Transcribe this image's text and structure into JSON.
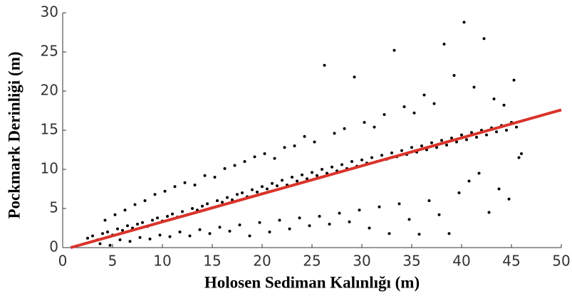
{
  "chart_data": {
    "type": "scatter",
    "xlabel": "Holosen Sediman Kalınlığı (m)",
    "ylabel": "Pockmark Derinliği (m)",
    "xlim": [
      0,
      50
    ],
    "ylim": [
      0,
      30
    ],
    "xticks": [
      0,
      5,
      10,
      15,
      20,
      25,
      30,
      35,
      40,
      45,
      50
    ],
    "yticks": [
      0,
      5,
      10,
      15,
      20,
      25,
      30
    ],
    "color": "#000000",
    "x": [
      2.5,
      3,
      3.5,
      4,
      4.5,
      5,
      5.5,
      6,
      6.5,
      7,
      7.5,
      8,
      8.5,
      9,
      9.5,
      10,
      10.5,
      11,
      11.5,
      12,
      12.5,
      13,
      13.5,
      14,
      14.5,
      15,
      15.5,
      16,
      16.5,
      17,
      17.5,
      18,
      18.5,
      19,
      19.5,
      20,
      20.5,
      21,
      21.5,
      22,
      22.5,
      23,
      23.5,
      24,
      24.5,
      25,
      25.5,
      26,
      26.5,
      27,
      27.5,
      28,
      28.5,
      29,
      29.5,
      30,
      30.5,
      31,
      31.5,
      32,
      32.5,
      33,
      33.5,
      34,
      34.5,
      35,
      35.5,
      36,
      36.5,
      37,
      37.5,
      38,
      38.5,
      39,
      39.5,
      40,
      40.5,
      41,
      41.5,
      42,
      42.5,
      43,
      43.5,
      44,
      44.5,
      45,
      45.5,
      46,
      4.25,
      5.25,
      6.25,
      7.25,
      8.25,
      9.25,
      10.25,
      11.25,
      12.25,
      13.25,
      14.25,
      15.25,
      16.25,
      17.25,
      18.25,
      19.25,
      20.25,
      21.25,
      22.25,
      23.25,
      24.25,
      25.25,
      26.25,
      27.25,
      28.25,
      29.25,
      30.25,
      31.25,
      32.25,
      33.25,
      34.25,
      35.25,
      36.25,
      37.25,
      38.25,
      39.25,
      40.25,
      41.25,
      42.25,
      43.25,
      44.25,
      45.25,
      3.75,
      4.75,
      5.75,
      6.75,
      7.75,
      8.75,
      9.75,
      10.75,
      11.75,
      12.75,
      13.75,
      14.75,
      15.75,
      16.75,
      17.75,
      18.75,
      19.75,
      20.75,
      21.75,
      22.75,
      23.75,
      24.75,
      25.75,
      26.75,
      27.75,
      28.75,
      29.75,
      30.75,
      31.75,
      32.75,
      33.75,
      34.75,
      35.75,
      36.75,
      37.75,
      38.75,
      39.75,
      40.75,
      41.75,
      42.75,
      43.75,
      44.75,
      45.75
    ],
    "values": [
      1.2,
      1.5,
      1.0,
      1.8,
      2.0,
      1.6,
      2.4,
      2.2,
      2.8,
      2.5,
      3.0,
      3.2,
      2.7,
      3.5,
      3.8,
      3.4,
      4.0,
      4.3,
      3.9,
      4.6,
      4.2,
      5.0,
      4.8,
      5.3,
      5.6,
      5.1,
      6.0,
      5.8,
      6.4,
      6.1,
      6.8,
      7.0,
      6.5,
      7.4,
      7.1,
      7.8,
      7.5,
      8.2,
      7.9,
      8.6,
      8.0,
      9.0,
      8.5,
      9.3,
      8.8,
      9.6,
      9.2,
      10.0,
      9.5,
      10.3,
      9.8,
      10.6,
      10.1,
      11.0,
      10.4,
      11.2,
      10.8,
      11.5,
      11.0,
      11.8,
      11.3,
      12.1,
      11.6,
      12.4,
      11.9,
      12.8,
      12.2,
      13.0,
      12.5,
      13.4,
      12.8,
      13.7,
      13.1,
      14.0,
      13.5,
      14.4,
      13.8,
      14.7,
      14.1,
      15.0,
      14.4,
      15.3,
      14.8,
      15.6,
      15.0,
      16.0,
      15.4,
      12.0,
      3.5,
      4.2,
      4.8,
      5.5,
      6.0,
      6.8,
      7.2,
      7.8,
      8.3,
      8.0,
      9.2,
      9.0,
      10.1,
      10.5,
      11.0,
      11.6,
      12.0,
      11.4,
      12.8,
      13.0,
      14.2,
      13.5,
      23.3,
      14.6,
      15.2,
      21.8,
      16.0,
      15.4,
      17.0,
      25.2,
      18.0,
      17.2,
      19.5,
      18.4,
      26.0,
      22.0,
      28.8,
      20.5,
      26.7,
      19.0,
      18.2,
      21.4,
      0.5,
      0.3,
      1.0,
      0.8,
      1.3,
      1.1,
      1.6,
      1.4,
      2.0,
      1.5,
      2.3,
      1.8,
      2.6,
      2.1,
      2.9,
      1.5,
      3.2,
      2.0,
      3.5,
      2.4,
      3.8,
      2.8,
      4.0,
      3.0,
      4.4,
      3.3,
      4.8,
      2.5,
      5.2,
      1.8,
      5.6,
      3.6,
      1.7,
      6.0,
      4.2,
      1.8,
      7.0,
      8.5,
      9.5,
      4.5,
      7.5,
      6.2,
      11.5
    ],
    "trend": {
      "x": [
        0.8,
        50
      ],
      "y": [
        0,
        17.6
      ],
      "color": "#d9342b"
    }
  }
}
